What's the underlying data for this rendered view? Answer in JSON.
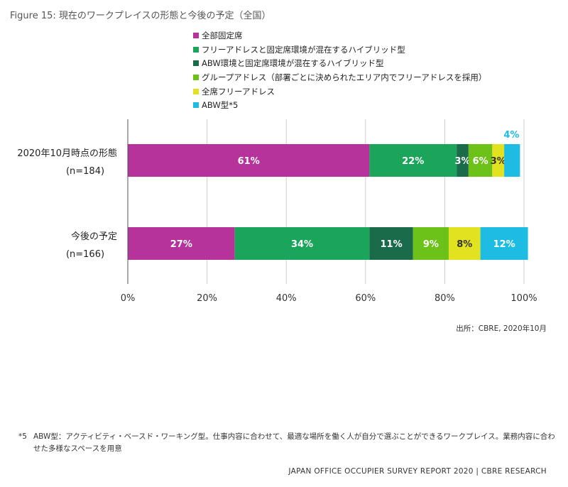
{
  "figure_title": "Figure 15: 現在のワークプレイスの形態と今後の予定（全国）",
  "chart_data": {
    "type": "bar",
    "orientation": "horizontal",
    "stacked": true,
    "categories": [
      {
        "label": "2020年10月時点の形態",
        "sublabel": "(n=184)"
      },
      {
        "label": "今後の予定",
        "sublabel": "(n=166)"
      }
    ],
    "series": [
      {
        "name": "全部固定席",
        "color": "#b5339a",
        "values": [
          61,
          27
        ],
        "labels": [
          "61%",
          "27%"
        ]
      },
      {
        "name": "フリーアドレスと固定席環境が混在するハイブリッド型",
        "color": "#1ba55a",
        "values": [
          22,
          34
        ],
        "labels": [
          "22%",
          "34%"
        ]
      },
      {
        "name": "ABW環境と固定席環境が混在するハイブリッド型",
        "color": "#1a6b4a",
        "values": [
          3,
          11
        ],
        "labels": [
          "3%",
          "11%"
        ]
      },
      {
        "name": "グループアドレス（部署ごとに決められたエリア内でフリーアドレスを採用）",
        "color": "#6cc219",
        "values": [
          6,
          9
        ],
        "labels": [
          "6%",
          "9%"
        ]
      },
      {
        "name": "全席フリーアドレス",
        "color": "#e3e220",
        "values": [
          3,
          8
        ],
        "labels": [
          "3%",
          "8%"
        ]
      },
      {
        "name": "ABW型*5",
        "color": "#1ebbe2",
        "values": [
          4,
          12
        ],
        "labels": [
          "4%",
          "12%"
        ]
      }
    ],
    "xlim": [
      0,
      100
    ],
    "x_ticks": [
      "0%",
      "20%",
      "40%",
      "60%",
      "80%",
      "100%"
    ],
    "grid": true,
    "legend_position": "top"
  },
  "source": "出所：CBRE, 2020年10月",
  "footnote": {
    "mark": "*5",
    "text": "ABW型：アクティビティ・ベースド・ワーキング型。仕事内容に合わせて、最適な場所を働く人が自分で選ぶことができるワークプレイス。業務内容に合わせた多様なスペースを用意"
  },
  "footer": "JAPAN OFFICE OCCUPIER SURVEY REPORT 2020 | CBRE RESEARCH"
}
